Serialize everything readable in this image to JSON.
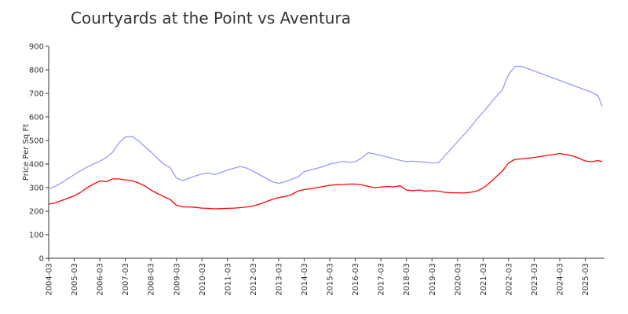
{
  "chart_data": {
    "type": "line",
    "title": "Courtyards at the Point vs Aventura",
    "y_label": "Price Per Sq Ft",
    "x": [
      "2004-03",
      "2004-06",
      "2004-09",
      "2004-12",
      "2005-03",
      "2005-06",
      "2005-09",
      "2005-12",
      "2006-03",
      "2006-06",
      "2006-09",
      "2006-12",
      "2007-03",
      "2007-06",
      "2007-09",
      "2007-12",
      "2008-03",
      "2008-06",
      "2008-09",
      "2008-12",
      "2009-03",
      "2009-06",
      "2009-09",
      "2009-12",
      "2010-03",
      "2010-06",
      "2010-09",
      "2010-12",
      "2011-03",
      "2011-06",
      "2011-09",
      "2011-12",
      "2012-03",
      "2012-06",
      "2012-09",
      "2012-12",
      "2013-03",
      "2013-06",
      "2013-09",
      "2013-12",
      "2014-03",
      "2014-06",
      "2014-09",
      "2014-12",
      "2015-03",
      "2015-06",
      "2015-09",
      "2015-12",
      "2016-03",
      "2016-06",
      "2016-09",
      "2016-12",
      "2017-03",
      "2017-06",
      "2017-09",
      "2017-12",
      "2018-03",
      "2018-06",
      "2018-09",
      "2018-12",
      "2019-03",
      "2019-06",
      "2019-09",
      "2019-12",
      "2020-03",
      "2020-06",
      "2020-09",
      "2020-12",
      "2021-03",
      "2021-06",
      "2021-09",
      "2021-12",
      "2022-03",
      "2022-06",
      "2022-09",
      "2022-12",
      "2023-03",
      "2023-06",
      "2023-09",
      "2023-12",
      "2024-03",
      "2024-06",
      "2024-09",
      "2024-12",
      "2025-03",
      "2025-06",
      "2025-09",
      "2025-11"
    ],
    "series": [
      {
        "color": "#9999ff",
        "values": [
          295,
          305,
          320,
          338,
          355,
          372,
          387,
          400,
          412,
          428,
          450,
          490,
          515,
          518,
          500,
          475,
          452,
          425,
          400,
          385,
          340,
          330,
          340,
          350,
          358,
          362,
          355,
          365,
          375,
          382,
          390,
          383,
          370,
          355,
          340,
          325,
          318,
          325,
          335,
          345,
          368,
          375,
          382,
          390,
          400,
          405,
          412,
          408,
          410,
          425,
          448,
          443,
          437,
          430,
          423,
          416,
          410,
          412,
          410,
          408,
          405,
          405,
          435,
          465,
          495,
          525,
          555,
          590,
          620,
          652,
          685,
          715,
          780,
          815,
          815,
          805,
          795,
          785,
          775,
          765,
          755,
          745,
          735,
          725,
          715,
          705,
          690,
          645
        ]
      },
      {
        "color": "#ff0000",
        "values": [
          230,
          235,
          245,
          255,
          265,
          280,
          300,
          315,
          328,
          325,
          337,
          337,
          333,
          330,
          320,
          308,
          290,
          275,
          262,
          250,
          225,
          218,
          218,
          216,
          213,
          212,
          210,
          211,
          212,
          213,
          215,
          218,
          222,
          230,
          240,
          250,
          258,
          262,
          270,
          285,
          292,
          295,
          300,
          305,
          310,
          312,
          313,
          315,
          315,
          312,
          305,
          300,
          302,
          305,
          303,
          308,
          290,
          287,
          290,
          285,
          287,
          285,
          280,
          278,
          278,
          277,
          280,
          285,
          298,
          320,
          345,
          370,
          405,
          420,
          422,
          425,
          428,
          432,
          437,
          440,
          445,
          440,
          435,
          425,
          413,
          410,
          415,
          410
        ]
      }
    ],
    "xlim": [
      "2004-03",
      "2025-12"
    ],
    "xticks": [
      "2004-03",
      "2005-03",
      "2006-03",
      "2007-03",
      "2008-03",
      "2009-03",
      "2010-03",
      "2011-03",
      "2012-03",
      "2013-03",
      "2014-03",
      "2015-03",
      "2016-03",
      "2017-03",
      "2018-03",
      "2019-03",
      "2020-03",
      "2021-03",
      "2022-03",
      "2023-03",
      "2024-03",
      "2025-03"
    ],
    "ylim": [
      0,
      900
    ],
    "yticks": [
      0,
      100,
      200,
      300,
      400,
      500,
      600,
      700,
      800,
      900
    ]
  }
}
